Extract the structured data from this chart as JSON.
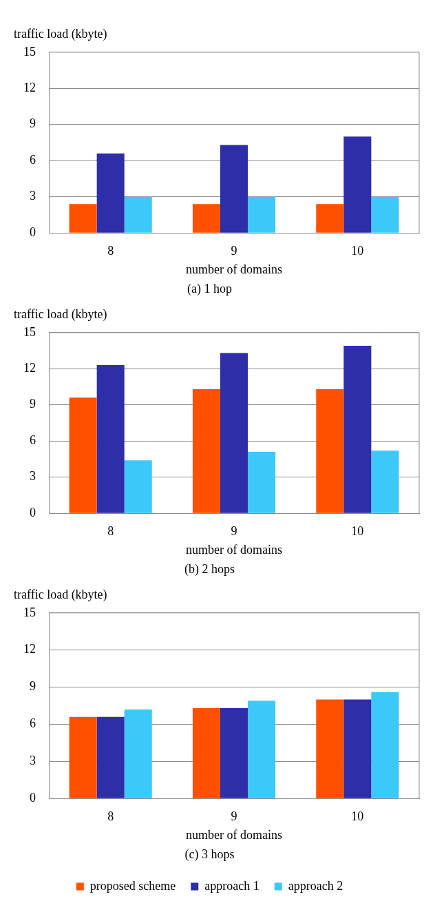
{
  "chart_data": [
    {
      "type": "bar",
      "title": "(a) 1 hop",
      "xlabel": "number of domains",
      "ylabel": "traffic load (kbyte)",
      "categories": [
        "8",
        "9",
        "10"
      ],
      "series": [
        {
          "color": "#ff5000",
          "values": [
            2.4,
            2.4,
            2.4
          ]
        },
        {
          "color": "#2e2ea8",
          "values": [
            6.6,
            7.3,
            8.0
          ]
        },
        {
          "color": "#3cc8f8",
          "values": [
            3.0,
            3.0,
            3.0
          ]
        }
      ],
      "ylim": [
        0,
        15
      ],
      "yticks": [
        0,
        3,
        6,
        9,
        12,
        15
      ],
      "grid": "y"
    },
    {
      "type": "bar",
      "title": "(b) 2 hops",
      "xlabel": "number of domains",
      "ylabel": "traffic load (kbyte)",
      "categories": [
        "8",
        "9",
        "10"
      ],
      "series": [
        {
          "color": "#ff5000",
          "values": [
            9.6,
            10.3,
            10.3
          ]
        },
        {
          "color": "#2e2ea8",
          "values": [
            12.3,
            13.3,
            13.9
          ]
        },
        {
          "color": "#3cc8f8",
          "values": [
            4.4,
            5.1,
            5.2
          ]
        }
      ],
      "ylim": [
        0,
        15
      ],
      "yticks": [
        0,
        3,
        6,
        9,
        12,
        15
      ],
      "grid": "y"
    },
    {
      "type": "bar",
      "title": "(c) 3 hops",
      "xlabel": "number of domains",
      "ylabel": "traffic load (kbyte)",
      "categories": [
        "8",
        "9",
        "10"
      ],
      "series": [
        {
          "name": "proposed scheme",
          "color": "#ff5000",
          "values": [
            6.6,
            7.3,
            8.0
          ]
        },
        {
          "name": "approach 1",
          "color": "#2e2ea8",
          "values": [
            6.6,
            7.3,
            8.0
          ]
        },
        {
          "name": "approach 2",
          "color": "#3cc8f8",
          "values": [
            7.2,
            7.9,
            8.6
          ]
        }
      ],
      "ylim": [
        0,
        15
      ],
      "yticks": [
        0,
        3,
        6,
        9,
        12,
        15
      ],
      "grid": "y",
      "legend": "bottom"
    }
  ]
}
